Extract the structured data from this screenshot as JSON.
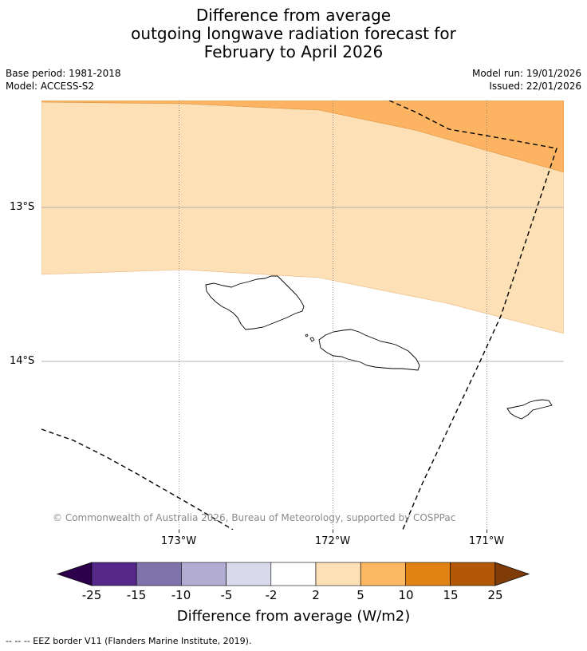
{
  "title": {
    "line1": "Difference from average",
    "line2": "outgoing longwave radiation forecast for",
    "line3": "February to April 2026"
  },
  "meta": {
    "base_period": "Base period: 1981-2018",
    "model": "Model: ACCESS-S2",
    "model_run": "Model run: 19/01/2026",
    "issued": "Issued: 22/01/2026"
  },
  "map": {
    "lat_labels": [
      "13°S",
      "14°S"
    ],
    "lon_labels": [
      "173°W",
      "172°W",
      "171°W"
    ],
    "copyright": "© Commonwealth of Australia 2026, Bureau of Meteorology, supported by COSPPac",
    "colors": {
      "band_5_10": "#fdb462",
      "band_2_5": "#fee0b6",
      "eez_line": "#000000",
      "gridline": "#9e9e9e"
    },
    "features": [
      "Samoa (Savai'i, Upolu)",
      "American Samoa (Tutuila)",
      "EEZ border"
    ]
  },
  "colorbar": {
    "ticks": [
      "-25",
      "-15",
      "-10",
      "-5",
      "-2",
      "2",
      "5",
      "10",
      "15",
      "25"
    ],
    "colors": [
      "#2d004b",
      "#542788",
      "#8073ac",
      "#b2abd2",
      "#d8daeb",
      "#ffffff",
      "#fee0b6",
      "#fdb863",
      "#e08214",
      "#b35806",
      "#7f3b08"
    ],
    "label": "Difference from average (W/m2)"
  },
  "legend_note": "--  --  -- EEZ border V11 (Flanders Marine Institute, 2019)."
}
